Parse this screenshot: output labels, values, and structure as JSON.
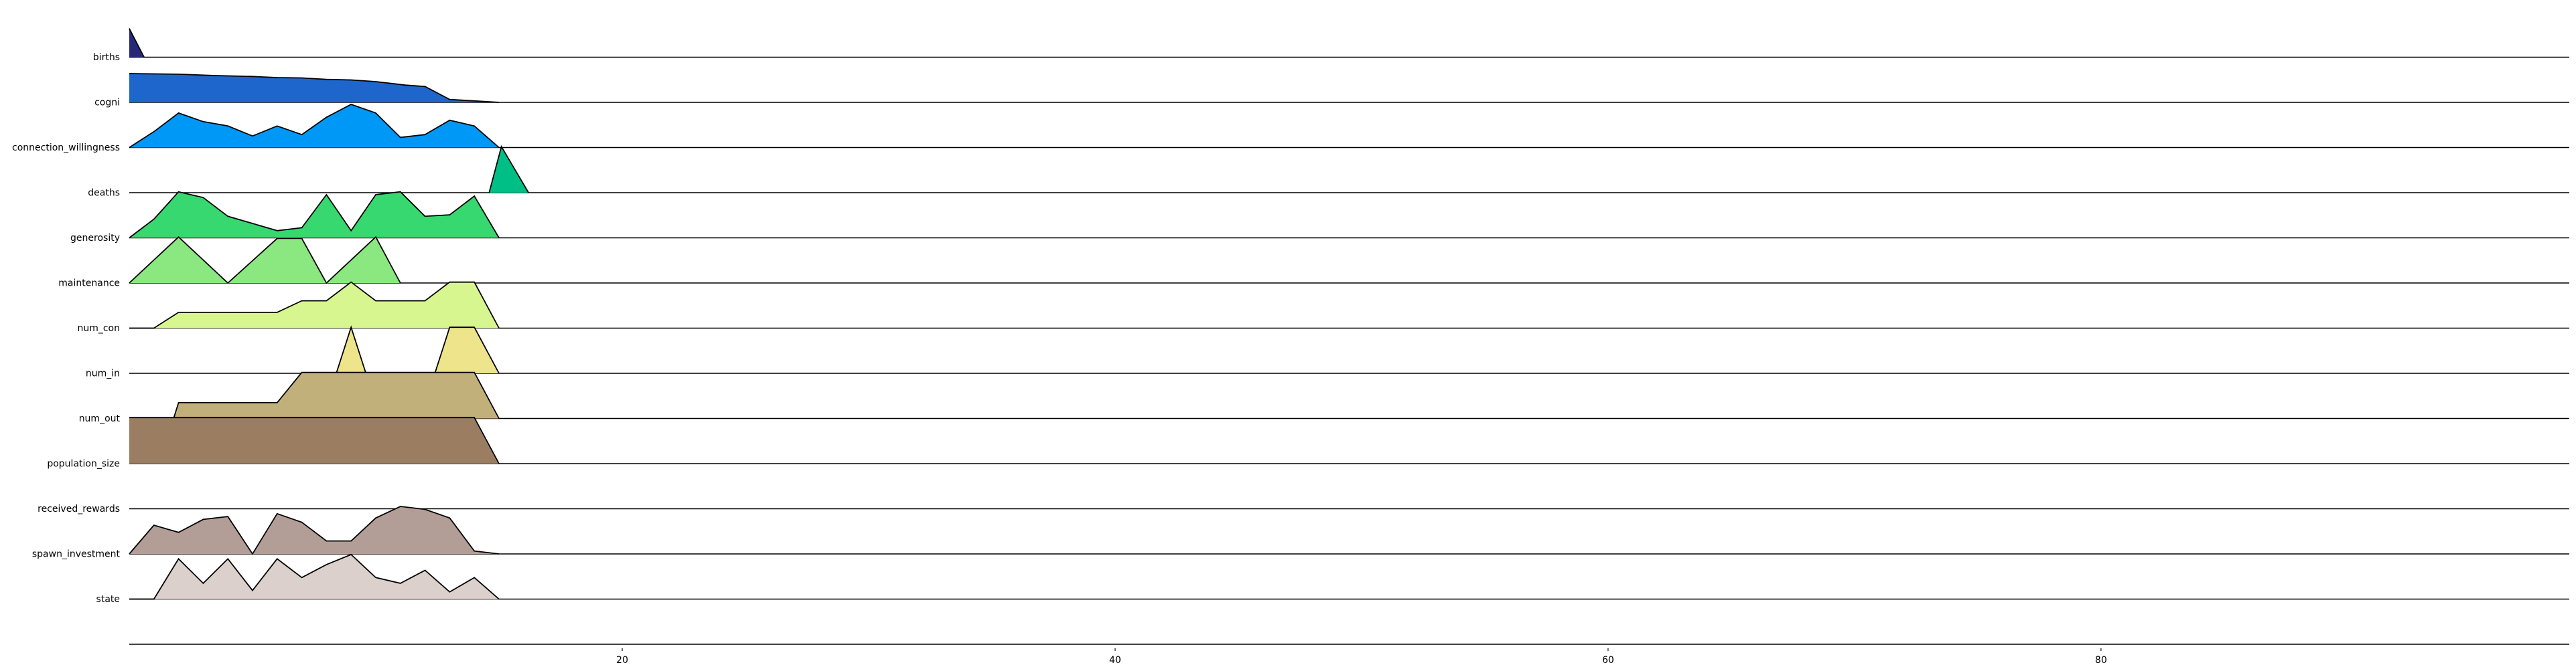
{
  "chart_data": {
    "type": "area",
    "subtype": "ridgeline",
    "title": "",
    "xlabel": "",
    "ylabel": "",
    "xlim": [
      0,
      99
    ],
    "xticks": [
      20,
      40,
      60,
      80
    ],
    "grid": false,
    "legend": "none",
    "series": [
      {
        "name": "",
        "color": "#262878",
        "values": [
          {
            "x": 0,
            "y": 1.0
          },
          {
            "x": 0.6,
            "y": 0.0
          }
        ],
        "label_index": null
      },
      {
        "name": "births",
        "color": "#1f66cc",
        "values": [
          {
            "x": 0,
            "y": 1.0
          },
          {
            "x": 2,
            "y": 0.98
          },
          {
            "x": 3.5,
            "y": 0.93
          },
          {
            "x": 5,
            "y": 0.9
          },
          {
            "x": 6,
            "y": 0.86
          },
          {
            "x": 7,
            "y": 0.85
          },
          {
            "x": 8,
            "y": 0.8
          },
          {
            "x": 9,
            "y": 0.78
          },
          {
            "x": 10,
            "y": 0.72
          },
          {
            "x": 11,
            "y": 0.62
          },
          {
            "x": 11.2,
            "y": 0.6
          },
          {
            "x": 12,
            "y": 0.55
          },
          {
            "x": 13,
            "y": 0.1
          },
          {
            "x": 14,
            "y": 0.05
          },
          {
            "x": 15,
            "y": 0.0
          }
        ]
      },
      {
        "name": "cogni",
        "color": "#0098f7",
        "values": [
          {
            "x": 0,
            "y": 0.0
          },
          {
            "x": 1,
            "y": 0.55
          },
          {
            "x": 2,
            "y": 1.2
          },
          {
            "x": 3,
            "y": 0.9
          },
          {
            "x": 4,
            "y": 0.75
          },
          {
            "x": 5,
            "y": 0.4
          },
          {
            "x": 6,
            "y": 0.75
          },
          {
            "x": 7,
            "y": 0.45
          },
          {
            "x": 8,
            "y": 1.05
          },
          {
            "x": 9,
            "y": 1.5
          },
          {
            "x": 10,
            "y": 1.2
          },
          {
            "x": 11,
            "y": 0.35
          },
          {
            "x": 12,
            "y": 0.45
          },
          {
            "x": 13,
            "y": 0.95
          },
          {
            "x": 14,
            "y": 0.75
          },
          {
            "x": 15,
            "y": 0.0
          }
        ]
      },
      {
        "name": "connection_willingness",
        "color": "#00bf86",
        "values": [
          {
            "x": 14.6,
            "y": 0.0
          },
          {
            "x": 15.1,
            "y": 1.6
          },
          {
            "x": 16.2,
            "y": 0.0
          }
        ]
      },
      {
        "name": "deaths",
        "color": "#37d86f",
        "values": [
          {
            "x": 0,
            "y": 0.0
          },
          {
            "x": 1,
            "y": 0.65
          },
          {
            "x": 2,
            "y": 1.6
          },
          {
            "x": 3,
            "y": 1.4
          },
          {
            "x": 4,
            "y": 0.75
          },
          {
            "x": 5,
            "y": 0.5
          },
          {
            "x": 6,
            "y": 0.25
          },
          {
            "x": 7,
            "y": 0.35
          },
          {
            "x": 8,
            "y": 1.5
          },
          {
            "x": 9,
            "y": 0.25
          },
          {
            "x": 10,
            "y": 1.5
          },
          {
            "x": 11,
            "y": 1.6
          },
          {
            "x": 12,
            "y": 0.75
          },
          {
            "x": 13,
            "y": 0.8
          },
          {
            "x": 14,
            "y": 1.45
          },
          {
            "x": 15,
            "y": 0.0
          }
        ]
      },
      {
        "name": "generosity",
        "color": "#8be780",
        "values": [
          {
            "x": 0,
            "y": 0.0
          },
          {
            "x": 2,
            "y": 1.6
          },
          {
            "x": 4,
            "y": 0.0
          },
          {
            "x": 6,
            "y": 1.55
          },
          {
            "x": 7,
            "y": 1.55
          },
          {
            "x": 8,
            "y": 0.0
          },
          {
            "x": 10,
            "y": 1.6
          },
          {
            "x": 11,
            "y": 0.0
          }
        ]
      },
      {
        "name": "maintenance",
        "color": "#d8f690",
        "values": [
          {
            "x": 0,
            "y": 0.0
          },
          {
            "x": 1,
            "y": 0.0
          },
          {
            "x": 2,
            "y": 0.55
          },
          {
            "x": 4,
            "y": 0.55
          },
          {
            "x": 6,
            "y": 0.55
          },
          {
            "x": 7,
            "y": 0.95
          },
          {
            "x": 8,
            "y": 0.95
          },
          {
            "x": 9,
            "y": 1.6
          },
          {
            "x": 10,
            "y": 0.95
          },
          {
            "x": 11,
            "y": 0.95
          },
          {
            "x": 12,
            "y": 0.95
          },
          {
            "x": 13,
            "y": 1.6
          },
          {
            "x": 14,
            "y": 1.6
          },
          {
            "x": 15,
            "y": 0.0
          }
        ]
      },
      {
        "name": "num_con",
        "color": "#ede48b",
        "values": [
          {
            "x": 8.4,
            "y": 0.0
          },
          {
            "x": 9,
            "y": 1.6
          },
          {
            "x": 9.6,
            "y": 0.0
          },
          {
            "x": 12.4,
            "y": 0.0
          },
          {
            "x": 13,
            "y": 1.6
          },
          {
            "x": 14,
            "y": 1.6
          },
          {
            "x": 15,
            "y": 0.0
          }
        ]
      },
      {
        "name": "num_in",
        "color": "#c2b07a",
        "values": [
          {
            "x": 0,
            "y": 0.0
          },
          {
            "x": 1.8,
            "y": 0.0
          },
          {
            "x": 2,
            "y": 0.55
          },
          {
            "x": 4,
            "y": 0.55
          },
          {
            "x": 6,
            "y": 0.55
          },
          {
            "x": 7,
            "y": 1.6
          },
          {
            "x": 14,
            "y": 1.6
          },
          {
            "x": 15,
            "y": 0.0
          }
        ]
      },
      {
        "name": "num_out",
        "color": "#9b7d62",
        "values": [
          {
            "x": 0,
            "y": 1.6
          },
          {
            "x": 14,
            "y": 1.6
          },
          {
            "x": 15,
            "y": 0.0
          }
        ]
      },
      {
        "name": "population_size",
        "color": "#a08c82",
        "values": []
      },
      {
        "name": "received_rewards",
        "color": "#b39e97",
        "values": [
          {
            "x": 0,
            "y": 0.0
          },
          {
            "x": 1,
            "y": 1.0
          },
          {
            "x": 2,
            "y": 0.75
          },
          {
            "x": 3,
            "y": 1.2
          },
          {
            "x": 4,
            "y": 1.3
          },
          {
            "x": 5,
            "y": 0.0
          },
          {
            "x": 6,
            "y": 1.4
          },
          {
            "x": 7,
            "y": 1.1
          },
          {
            "x": 8,
            "y": 0.45
          },
          {
            "x": 9,
            "y": 0.45
          },
          {
            "x": 10,
            "y": 1.25
          },
          {
            "x": 11,
            "y": 1.65
          },
          {
            "x": 12,
            "y": 1.55
          },
          {
            "x": 13,
            "y": 1.25
          },
          {
            "x": 14,
            "y": 0.1
          },
          {
            "x": 15,
            "y": 0.0
          }
        ]
      },
      {
        "name": "spawn_investment",
        "color": "#dbd0cc",
        "values": [
          {
            "x": 0,
            "y": 0.0
          },
          {
            "x": 1,
            "y": 0.0
          },
          {
            "x": 2,
            "y": 1.4
          },
          {
            "x": 3,
            "y": 0.55
          },
          {
            "x": 4,
            "y": 1.4
          },
          {
            "x": 5,
            "y": 0.3
          },
          {
            "x": 6,
            "y": 1.4
          },
          {
            "x": 7,
            "y": 0.75
          },
          {
            "x": 8,
            "y": 1.2
          },
          {
            "x": 9,
            "y": 1.55
          },
          {
            "x": 10,
            "y": 0.75
          },
          {
            "x": 11,
            "y": 0.55
          },
          {
            "x": 12,
            "y": 1.0
          },
          {
            "x": 13,
            "y": 0.25
          },
          {
            "x": 14,
            "y": 0.75
          },
          {
            "x": 15,
            "y": 0.0
          }
        ]
      },
      {
        "name": "state",
        "color": "#ffffff",
        "values": []
      }
    ]
  }
}
